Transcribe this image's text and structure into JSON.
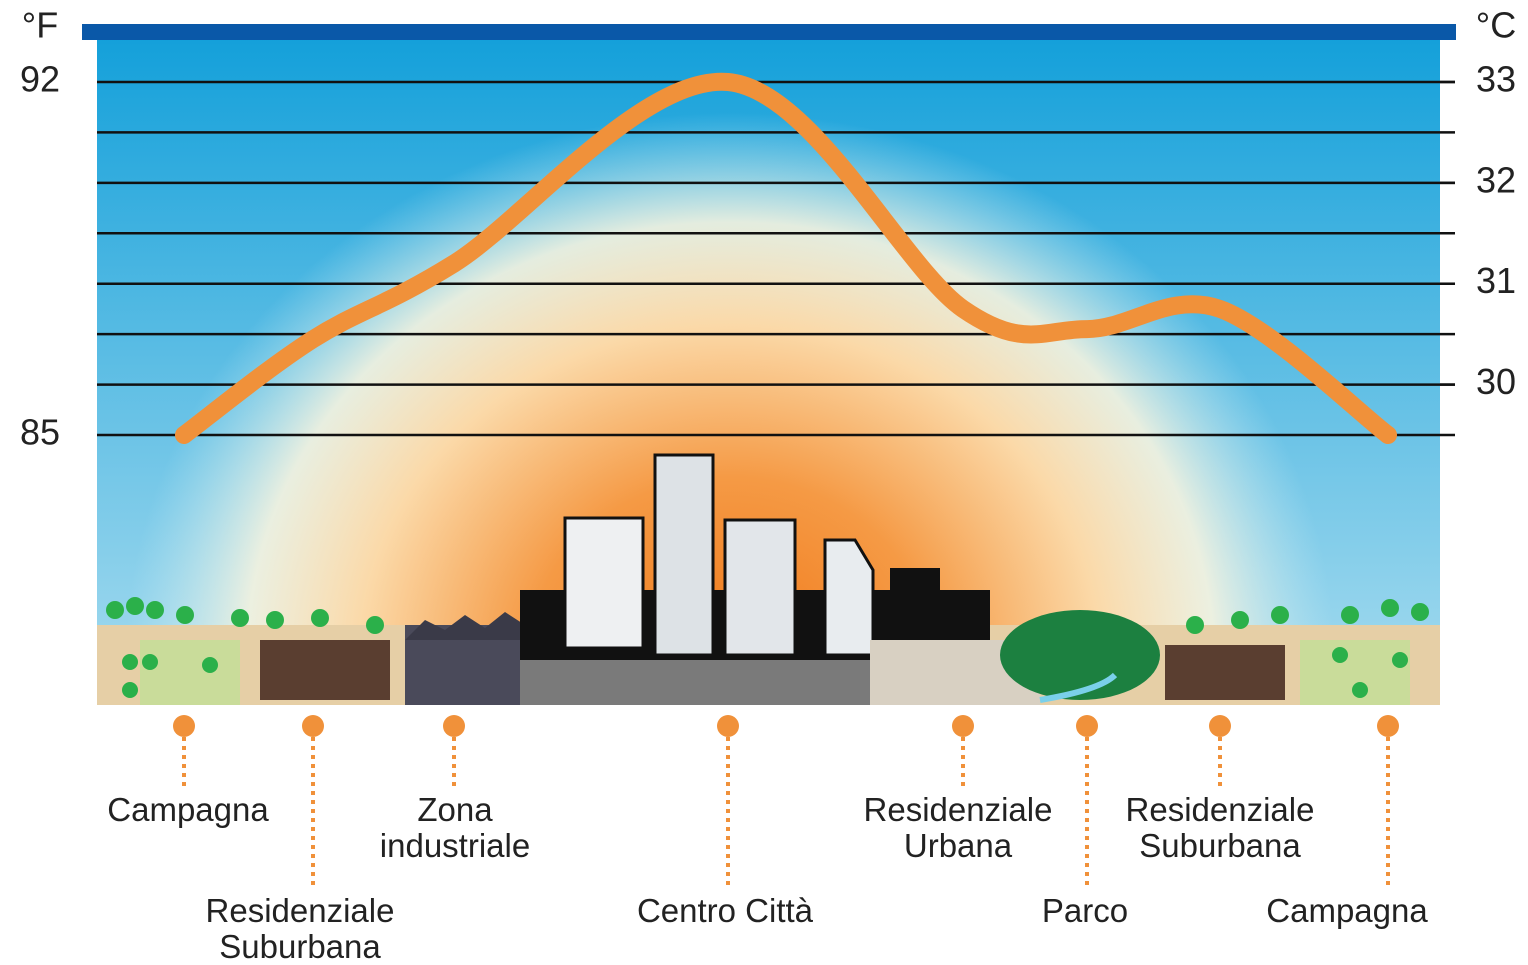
{
  "chart_data": {
    "type": "line",
    "ylabel": "°F",
    "y2label": "°C",
    "categories": [
      "Campagna",
      "Residenziale Suburbana",
      "Zona industriale",
      "Centro Città",
      "Residenziale Urbana",
      "Parco",
      "Residenziale Suburbana",
      "Campagna"
    ],
    "series": [
      {
        "color": "#f0913a",
        "values": [
          85,
          86.9,
          88.4,
          92,
          87.5,
          87.1,
          87.5,
          85
        ]
      }
    ],
    "ylim": [
      85,
      92
    ],
    "yticks": [
      85,
      92
    ],
    "y_minor_ticks": [
      86,
      87,
      88,
      89,
      90,
      91
    ],
    "y2lim": [
      29.5,
      33
    ],
    "y2ticks": [
      30,
      31,
      32,
      33
    ],
    "grid": true
  }
}
